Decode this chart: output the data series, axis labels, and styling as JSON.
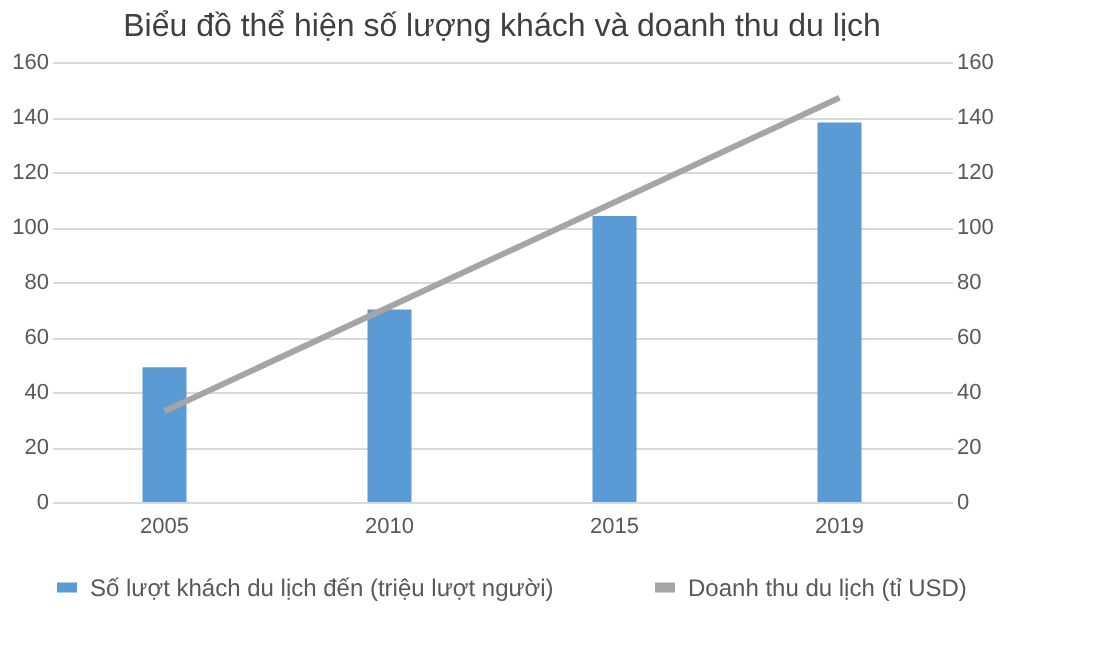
{
  "chart_data": {
    "type": "bar",
    "title": "Biểu đồ thể hiện số lượng khách và doanh thu du lịch",
    "categories": [
      "2005",
      "2010",
      "2015",
      "2019"
    ],
    "series": [
      {
        "name": "Số lượt khách du lịch đến (triệu lượt người)",
        "color": "#5b9bd5",
        "values": [
          49,
          70,
          104,
          138
        ]
      },
      {
        "name": "Doanh thu du lịch (tỉ USD)",
        "color": "#a5a5a5",
        "type": "line",
        "axis": "y2",
        "values": [
          33,
          71,
          109,
          147
        ]
      }
    ],
    "ylim": [
      0,
      160
    ],
    "yticks": [
      0,
      20,
      40,
      60,
      80,
      100,
      120,
      140,
      160
    ],
    "y2lim": [
      0,
      160
    ],
    "y2ticks": [
      0,
      20,
      40,
      60,
      80,
      100,
      120,
      140,
      160
    ],
    "grid": "y",
    "legend": "bottom",
    "marker": "none"
  }
}
